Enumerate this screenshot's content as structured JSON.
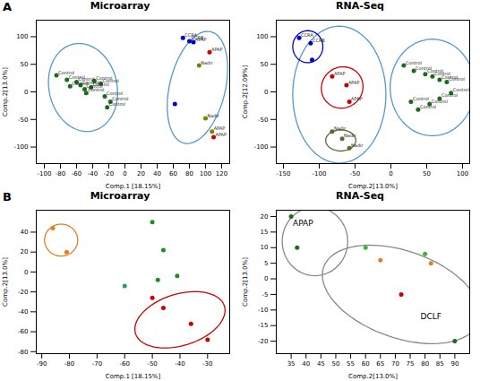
{
  "chart_data": [
    {
      "type": "scatter",
      "panel_label": "A",
      "title": "Microarray",
      "xlabel": "Comp.1 [18.15%]",
      "ylabel": "Comp.2[13.0%]",
      "xlim": [
        -110,
        130
      ],
      "ylim": [
        -130,
        130
      ],
      "xticks": [
        -100,
        -80,
        -60,
        -40,
        -20,
        0,
        20,
        40,
        60,
        80,
        100,
        120
      ],
      "yticks": [
        -100,
        -50,
        0,
        50,
        100
      ],
      "ellipses": [
        {
          "cx": -52,
          "cy": 8,
          "width": 85,
          "height": 160,
          "angle": 5,
          "color": "#5599cc"
        },
        {
          "cx": 90,
          "cy": 8,
          "width": 70,
          "height": 205,
          "angle": -8,
          "color": "#5599cc"
        }
      ],
      "series": [
        {
          "color": "#1a6b1a",
          "x": [
            -85,
            -72,
            -68,
            -60,
            -55,
            -50,
            -48,
            -42,
            -38,
            -30,
            -25,
            -22,
            -18
          ],
          "values": [
            30,
            22,
            10,
            18,
            12,
            5,
            -2,
            8,
            20,
            15,
            -8,
            -28,
            -18
          ],
          "labels": [
            "Control",
            "Control",
            "Control",
            "Control",
            "Control",
            "Control",
            "Control",
            "Control",
            "Control",
            "Control",
            "Control",
            "Control",
            "Control"
          ]
        },
        {
          "color": "#0000cc",
          "x": [
            72,
            80,
            85
          ],
          "values": [
            98,
            92,
            90
          ],
          "labels": [
            "CCRA",
            "CCRB",
            "APAP"
          ]
        },
        {
          "color": "#cc0000",
          "x": [
            105,
            110
          ],
          "values": [
            72,
            -82
          ],
          "labels": [
            "APAP",
            "APAP"
          ]
        },
        {
          "color": "#808000",
          "x": [
            92,
            100,
            108
          ],
          "values": [
            48,
            -48,
            -72
          ],
          "labels": [
            "Nadir",
            "Nadir",
            "APAP"
          ]
        },
        {
          "color": "#0000cc",
          "x": [
            62
          ],
          "values": [
            -22
          ]
        }
      ]
    },
    {
      "type": "scatter",
      "title": "RNA-Seq",
      "xlabel": "Comp.2[13.0%]",
      "ylabel": "Comp.2[12.09%]",
      "xlim": [
        -160,
        110
      ],
      "ylim": [
        -130,
        130
      ],
      "xticks": [
        -150,
        -100,
        -50,
        0,
        50,
        100
      ],
      "yticks": [
        -100,
        -50,
        0,
        50,
        100
      ],
      "ellipses": [
        {
          "cx": -72,
          "cy": -5,
          "width": 130,
          "height": 248,
          "angle": 0,
          "color": "#5599cc"
        },
        {
          "cx": 58,
          "cy": 8,
          "width": 118,
          "height": 175,
          "angle": 0,
          "color": "#5599cc"
        },
        {
          "cx": -116,
          "cy": 82,
          "width": 42,
          "height": 58,
          "angle": 0,
          "color": "#0000cc"
        },
        {
          "cx": -68,
          "cy": 8,
          "width": 58,
          "height": 75,
          "angle": -5,
          "color": "#cc0000"
        },
        {
          "cx": -70,
          "cy": -88,
          "width": 42,
          "height": 38,
          "angle": 0,
          "color": "#556b2f"
        }
      ],
      "series": [
        {
          "color": "#0000cc",
          "x": [
            -128,
            -112,
            -110
          ],
          "values": [
            98,
            88,
            58
          ],
          "labels": [
            "CCRA",
            "CCRB",
            null
          ]
        },
        {
          "color": "#cc0000",
          "x": [
            -82,
            -62,
            -58
          ],
          "values": [
            28,
            12,
            -18
          ],
          "labels": [
            "APAP",
            "APAP",
            "APAP"
          ]
        },
        {
          "color": "#556b2f",
          "x": [
            -82,
            -68,
            -58
          ],
          "values": [
            -72,
            -85,
            -102
          ],
          "labels": [
            "Nadir",
            "Nadir",
            "Nadir"
          ]
        },
        {
          "color": "#1a6b1a",
          "x": [
            18,
            32,
            48,
            58,
            68,
            78,
            84,
            68,
            54,
            38,
            28
          ],
          "values": [
            48,
            38,
            32,
            28,
            22,
            18,
            -2,
            -12,
            -22,
            -32,
            -18
          ],
          "labels": [
            "Control",
            "Control",
            "Control",
            "Control",
            "Control",
            "Control",
            "Control",
            "Control",
            "Control",
            "Control",
            "Control"
          ]
        }
      ]
    },
    {
      "type": "scatter",
      "panel_label": "B",
      "title": "Microarray",
      "xlabel": "Comp.1 [18.15%]",
      "ylabel": "Comp.2[13.0%]",
      "xlim": [
        -92,
        -22
      ],
      "ylim": [
        -82,
        62
      ],
      "xticks": [
        -90,
        -80,
        -70,
        -60,
        -50,
        -40,
        -30
      ],
      "yticks": [
        -80,
        -60,
        -40,
        -20,
        0,
        20,
        40
      ],
      "ellipses": [
        {
          "cx": -83,
          "cy": 32,
          "width": 12,
          "height": 32,
          "angle": 0,
          "color": "#e08020"
        },
        {
          "cx": -40,
          "cy": -48,
          "width": 30,
          "height": 58,
          "angle": -15,
          "color": "#cc0000"
        }
      ],
      "series": [
        {
          "color": "#e08020",
          "x": [
            -86,
            -81
          ],
          "values": [
            44,
            20
          ]
        },
        {
          "color": "#228b22",
          "x": [
            -50,
            -46,
            -41,
            -48
          ],
          "values": [
            50,
            22,
            -4,
            -8
          ]
        },
        {
          "color": "#20a070",
          "x": [
            -60
          ],
          "values": [
            -14
          ]
        },
        {
          "color": "#cc0000",
          "x": [
            -50,
            -46,
            -36,
            -30
          ],
          "values": [
            -26,
            -36,
            -52,
            -68
          ]
        }
      ]
    },
    {
      "type": "scatter",
      "title": "RNA-Seq",
      "xlabel": "Comp.2[13.0%]",
      "ylabel": "Comp.2[13.0%]",
      "xlim": [
        30,
        95
      ],
      "ylim": [
        -24,
        22
      ],
      "xticks": [
        35,
        40,
        45,
        50,
        55,
        60,
        65,
        70,
        75,
        80,
        85,
        90
      ],
      "yticks": [
        -20,
        -15,
        -10,
        -5,
        0,
        5,
        10,
        15,
        20
      ],
      "ellipses": [
        {
          "cx": 43,
          "cy": 12,
          "width": 22,
          "height": 22,
          "angle": 0,
          "color": "#888888"
        },
        {
          "cx": 72,
          "cy": -5,
          "width": 55,
          "height": 28,
          "angle": -18,
          "color": "#888888"
        }
      ],
      "series": [
        {
          "color": "#1a6b1a",
          "x": [
            35,
            37
          ],
          "values": [
            20,
            10
          ]
        },
        {
          "color": "#40b040",
          "x": [
            60,
            80
          ],
          "values": [
            10,
            8
          ]
        },
        {
          "color": "#e08020",
          "x": [
            65,
            82
          ],
          "values": [
            6,
            5
          ]
        },
        {
          "color": "#cc0000",
          "x": [
            72
          ],
          "values": [
            -5
          ]
        },
        {
          "color": "#1a6b1a",
          "x": [
            90
          ],
          "values": [
            -20
          ]
        }
      ],
      "annotations": [
        {
          "text": "APAP",
          "x": 39,
          "y": 17
        },
        {
          "text": "DCLF",
          "x": 82,
          "y": -13
        }
      ]
    }
  ]
}
